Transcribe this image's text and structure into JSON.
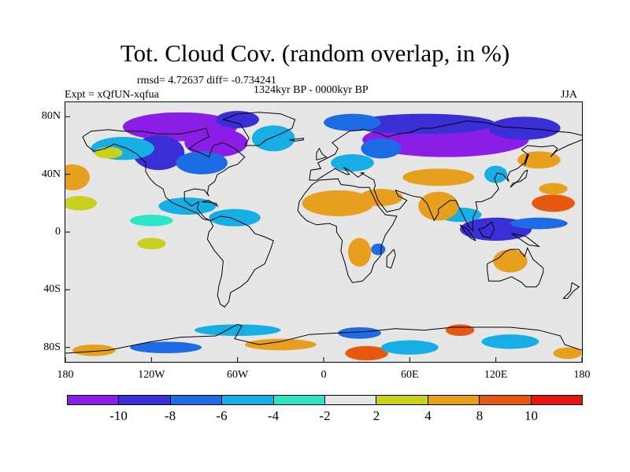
{
  "header": {
    "title": "Tot. Cloud Cov. (random overlap, in %)",
    "stats": "rmsd= 4.72637 diff= -0.734241",
    "period": "1324kyr BP - 0000kyr BP",
    "experiment": "Expt = xQfUN-xqfua",
    "season": "JJA"
  },
  "map": {
    "lat_labels": [
      "80N",
      "40N",
      "0",
      "40S",
      "80S"
    ],
    "lat_values": [
      80,
      40,
      0,
      -40,
      -80
    ],
    "lon_labels": [
      "180",
      "120W",
      "60W",
      "0",
      "60E",
      "120E",
      "180"
    ],
    "lon_values": [
      -180,
      -120,
      -60,
      0,
      60,
      120,
      180
    ],
    "lat_range": [
      -90,
      90
    ],
    "lon_range": [
      -180,
      180
    ],
    "projection": "cylindrical-equidistant",
    "background_color": "#e6e6e6",
    "coastline_color": "#000000"
  },
  "colorbar": {
    "labels": [
      "-10",
      "-8",
      "-6",
      "-4",
      "-2",
      "2",
      "4",
      "8",
      "10"
    ],
    "colors": [
      "#8a1ee6",
      "#3a2ed6",
      "#1e6be6",
      "#17aee6",
      "#2de6c8",
      "#e6e6e6",
      "#c8d21e",
      "#e6a01e",
      "#e65a10",
      "#e61414"
    ]
  },
  "field_patches": [
    {
      "lon": -100,
      "lat": 73,
      "rx": 40,
      "ry": 10,
      "value": -12
    },
    {
      "lon": -75,
      "lat": 62,
      "rx": 22,
      "ry": 10,
      "value": -12
    },
    {
      "lon": -115,
      "lat": 55,
      "rx": 18,
      "ry": 12,
      "value": -10
    },
    {
      "lon": -60,
      "lat": 78,
      "rx": 15,
      "ry": 6,
      "value": -9
    },
    {
      "lon": -140,
      "lat": 58,
      "rx": 22,
      "ry": 8,
      "value": -6
    },
    {
      "lon": -85,
      "lat": 48,
      "rx": 18,
      "ry": 8,
      "value": -7
    },
    {
      "lon": -35,
      "lat": 65,
      "rx": 15,
      "ry": 9,
      "value": -5
    },
    {
      "lon": 85,
      "lat": 64,
      "rx": 58,
      "ry": 12,
      "value": -12
    },
    {
      "lon": 70,
      "lat": 75,
      "rx": 50,
      "ry": 7,
      "value": -10
    },
    {
      "lon": 20,
      "lat": 76,
      "rx": 20,
      "ry": 6,
      "value": -8
    },
    {
      "lon": 140,
      "lat": 72,
      "rx": 25,
      "ry": 8,
      "value": -9
    },
    {
      "lon": 40,
      "lat": 58,
      "rx": 14,
      "ry": 7,
      "value": -7
    },
    {
      "lon": 20,
      "lat": 48,
      "rx": 15,
      "ry": 6,
      "value": -5
    },
    {
      "lon": -95,
      "lat": 18,
      "rx": 20,
      "ry": 6,
      "value": -6
    },
    {
      "lon": -62,
      "lat": 10,
      "rx": 18,
      "ry": 6,
      "value": -5
    },
    {
      "lon": -120,
      "lat": 8,
      "rx": 15,
      "ry": 4,
      "value": -4
    },
    {
      "lon": 120,
      "lat": 2,
      "rx": 25,
      "ry": 8,
      "value": -10
    },
    {
      "lon": 150,
      "lat": 6,
      "rx": 20,
      "ry": 4,
      "value": -8
    },
    {
      "lon": 95,
      "lat": 12,
      "rx": 15,
      "ry": 5,
      "value": -5
    },
    {
      "lon": 120,
      "lat": 40,
      "rx": 8,
      "ry": 6,
      "value": -6
    },
    {
      "lon": 38,
      "lat": -12,
      "rx": 5,
      "ry": 4,
      "value": -7
    },
    {
      "lon": -175,
      "lat": 38,
      "rx": 12,
      "ry": 9,
      "value": 6
    },
    {
      "lon": -170,
      "lat": 20,
      "rx": 12,
      "ry": 5,
      "value": 3
    },
    {
      "lon": -150,
      "lat": 55,
      "rx": 10,
      "ry": 4,
      "value": 3
    },
    {
      "lon": 10,
      "lat": 20,
      "rx": 25,
      "ry": 9,
      "value": 6
    },
    {
      "lon": 40,
      "lat": 24,
      "rx": 15,
      "ry": 6,
      "value": 5
    },
    {
      "lon": 80,
      "lat": 38,
      "rx": 25,
      "ry": 6,
      "value": 5
    },
    {
      "lon": 80,
      "lat": 18,
      "rx": 14,
      "ry": 10,
      "value": 6
    },
    {
      "lon": 160,
      "lat": 20,
      "rx": 15,
      "ry": 6,
      "value": 9
    },
    {
      "lon": 160,
      "lat": 30,
      "rx": 10,
      "ry": 4,
      "value": 4
    },
    {
      "lon": 25,
      "lat": -14,
      "rx": 8,
      "ry": 10,
      "value": 7
    },
    {
      "lon": 130,
      "lat": -20,
      "rx": 12,
      "ry": 8,
      "value": 5
    },
    {
      "lon": -120,
      "lat": -8,
      "rx": 10,
      "ry": 4,
      "value": 3
    },
    {
      "lon": 150,
      "lat": 50,
      "rx": 15,
      "ry": 6,
      "value": 4
    },
    {
      "lon": -60,
      "lat": -68,
      "rx": 30,
      "ry": 4,
      "value": -5
    },
    {
      "lon": 25,
      "lat": -70,
      "rx": 15,
      "ry": 4,
      "value": -8
    },
    {
      "lon": -160,
      "lat": -82,
      "rx": 15,
      "ry": 4,
      "value": 7
    },
    {
      "lon": 30,
      "lat": -84,
      "rx": 15,
      "ry": 5,
      "value": 9
    },
    {
      "lon": 95,
      "lat": -68,
      "rx": 10,
      "ry": 4,
      "value": 9
    },
    {
      "lon": 170,
      "lat": -84,
      "rx": 10,
      "ry": 4,
      "value": 7
    },
    {
      "lon": -110,
      "lat": -80,
      "rx": 25,
      "ry": 4,
      "value": -7
    },
    {
      "lon": 60,
      "lat": -80,
      "rx": 20,
      "ry": 5,
      "value": -6
    },
    {
      "lon": 130,
      "lat": -76,
      "rx": 20,
      "ry": 5,
      "value": -5
    },
    {
      "lon": -30,
      "lat": -78,
      "rx": 25,
      "ry": 4,
      "value": 4
    }
  ],
  "coastlines": [
    [
      [
        -168,
        66
      ],
      [
        -162,
        70
      ],
      [
        -150,
        71
      ],
      [
        -140,
        70
      ],
      [
        -128,
        70
      ],
      [
        -115,
        68
      ],
      [
        -100,
        68
      ],
      [
        -90,
        70
      ],
      [
        -82,
        72
      ],
      [
        -80,
        66
      ],
      [
        -88,
        62
      ],
      [
        -94,
        58
      ],
      [
        -86,
        55
      ],
      [
        -80,
        52
      ],
      [
        -77,
        60
      ],
      [
        -70,
        62
      ],
      [
        -62,
        58
      ],
      [
        -55,
        52
      ],
      [
        -60,
        47
      ],
      [
        -66,
        45
      ],
      [
        -70,
        42
      ],
      [
        -74,
        40
      ],
      [
        -76,
        35
      ],
      [
        -80,
        32
      ],
      [
        -81,
        27
      ],
      [
        -80,
        25
      ],
      [
        -83,
        29
      ],
      [
        -90,
        30
      ],
      [
        -97,
        28
      ],
      [
        -97,
        22
      ],
      [
        -92,
        18
      ],
      [
        -87,
        21
      ],
      [
        -88,
        16
      ],
      [
        -83,
        10
      ],
      [
        -79,
        8
      ],
      [
        -84,
        9
      ],
      [
        -88,
        13
      ],
      [
        -95,
        16
      ],
      [
        -105,
        20
      ],
      [
        -110,
        24
      ],
      [
        -112,
        30
      ],
      [
        -117,
        33
      ],
      [
        -121,
        37
      ],
      [
        -124,
        42
      ],
      [
        -124,
        48
      ],
      [
        -130,
        54
      ],
      [
        -137,
        58
      ],
      [
        -146,
        61
      ],
      [
        -152,
        58
      ],
      [
        -160,
        56
      ],
      [
        -165,
        60
      ],
      [
        -168,
        66
      ]
    ],
    [
      [
        -79,
        8
      ],
      [
        -72,
        11
      ],
      [
        -65,
        10
      ],
      [
        -58,
        7
      ],
      [
        -52,
        4
      ],
      [
        -48,
        -1
      ],
      [
        -42,
        -3
      ],
      [
        -35,
        -6
      ],
      [
        -37,
        -12
      ],
      [
        -39,
        -17
      ],
      [
        -41,
        -22
      ],
      [
        -48,
        -26
      ],
      [
        -53,
        -34
      ],
      [
        -58,
        -38
      ],
      [
        -65,
        -42
      ],
      [
        -66,
        -48
      ],
      [
        -69,
        -52
      ],
      [
        -72,
        -50
      ],
      [
        -74,
        -44
      ],
      [
        -73,
        -37
      ],
      [
        -71,
        -30
      ],
      [
        -70,
        -20
      ],
      [
        -76,
        -13
      ],
      [
        -81,
        -5
      ],
      [
        -80,
        0
      ],
      [
        -77,
        4
      ],
      [
        -79,
        8
      ]
    ],
    [
      [
        -18,
        15
      ],
      [
        -17,
        21
      ],
      [
        -13,
        27
      ],
      [
        -8,
        33
      ],
      [
        -3,
        36
      ],
      [
        10,
        37
      ],
      [
        12,
        33
      ],
      [
        20,
        32
      ],
      [
        25,
        31
      ],
      [
        32,
        31
      ],
      [
        33,
        28
      ],
      [
        38,
        18
      ],
      [
        43,
        12
      ],
      [
        51,
        11
      ],
      [
        48,
        5
      ],
      [
        43,
        -2
      ],
      [
        40,
        -10
      ],
      [
        40,
        -16
      ],
      [
        35,
        -22
      ],
      [
        33,
        -28
      ],
      [
        27,
        -34
      ],
      [
        20,
        -35
      ],
      [
        17,
        -30
      ],
      [
        15,
        -22
      ],
      [
        12,
        -13
      ],
      [
        13,
        -6
      ],
      [
        9,
        0
      ],
      [
        9,
        4
      ],
      [
        4,
        6
      ],
      [
        -5,
        5
      ],
      [
        -12,
        8
      ],
      [
        -16,
        12
      ],
      [
        -18,
        15
      ]
    ],
    [
      [
        -10,
        36
      ],
      [
        -9,
        43
      ],
      [
        -2,
        44
      ],
      [
        -4,
        48
      ],
      [
        2,
        51
      ],
      [
        8,
        54
      ],
      [
        10,
        58
      ],
      [
        6,
        62
      ],
      [
        12,
        66
      ],
      [
        18,
        70
      ],
      [
        28,
        71
      ],
      [
        40,
        68
      ],
      [
        44,
        66
      ],
      [
        52,
        68
      ],
      [
        60,
        69
      ],
      [
        68,
        72
      ],
      [
        75,
        72
      ],
      [
        80,
        73
      ],
      [
        90,
        75
      ],
      [
        100,
        77
      ],
      [
        112,
        76
      ],
      [
        125,
        73
      ],
      [
        140,
        72
      ],
      [
        152,
        71
      ],
      [
        160,
        70
      ],
      [
        172,
        69
      ],
      [
        180,
        67
      ]
    ],
    [
      [
        -10,
        36
      ],
      [
        -5,
        36
      ],
      [
        3,
        41
      ],
      [
        8,
        44
      ],
      [
        12,
        42
      ],
      [
        16,
        40
      ],
      [
        18,
        40
      ],
      [
        14,
        45
      ],
      [
        19,
        42
      ],
      [
        24,
        38
      ],
      [
        28,
        41
      ],
      [
        26,
        41
      ],
      [
        35,
        36
      ],
      [
        36,
        32
      ],
      [
        35,
        30
      ],
      [
        38,
        22
      ],
      [
        44,
        14
      ],
      [
        53,
        16
      ],
      [
        58,
        22
      ],
      [
        52,
        25
      ],
      [
        50,
        29
      ],
      [
        56,
        27
      ],
      [
        62,
        25
      ],
      [
        68,
        24
      ],
      [
        72,
        20
      ],
      [
        77,
        8
      ],
      [
        80,
        13
      ],
      [
        80,
        16
      ],
      [
        88,
        22
      ],
      [
        92,
        22
      ],
      [
        95,
        16
      ],
      [
        98,
        10
      ],
      [
        101,
        4
      ],
      [
        104,
        1
      ],
      [
        104,
        10
      ],
      [
        107,
        16
      ],
      [
        106,
        21
      ],
      [
        110,
        21
      ],
      [
        117,
        24
      ],
      [
        122,
        30
      ],
      [
        121,
        32
      ],
      [
        119,
        37
      ],
      [
        121,
        41
      ],
      [
        125,
        40
      ],
      [
        129,
        35
      ],
      [
        128,
        38
      ],
      [
        130,
        42
      ],
      [
        135,
        44
      ],
      [
        140,
        48
      ],
      [
        142,
        54
      ],
      [
        138,
        57
      ],
      [
        142,
        60
      ],
      [
        152,
        59
      ],
      [
        160,
        60
      ],
      [
        163,
        58
      ],
      [
        158,
        52
      ],
      [
        162,
        56
      ],
      [
        170,
        60
      ],
      [
        180,
        64
      ]
    ],
    [
      [
        -55,
        60
      ],
      [
        -45,
        60
      ],
      [
        -40,
        64
      ],
      [
        -30,
        68
      ],
      [
        -22,
        72
      ],
      [
        -20,
        78
      ],
      [
        -30,
        82
      ],
      [
        -45,
        83
      ],
      [
        -60,
        82
      ],
      [
        -70,
        78
      ],
      [
        -58,
        75
      ],
      [
        -55,
        70
      ],
      [
        -52,
        65
      ],
      [
        -55,
        60
      ]
    ],
    [
      [
        114,
        -22
      ],
      [
        114,
        -26
      ],
      [
        115,
        -34
      ],
      [
        123,
        -34
      ],
      [
        131,
        -31
      ],
      [
        138,
        -35
      ],
      [
        141,
        -38
      ],
      [
        148,
        -38
      ],
      [
        150,
        -36
      ],
      [
        153,
        -28
      ],
      [
        153,
        -25
      ],
      [
        146,
        -19
      ],
      [
        142,
        -11
      ],
      [
        140,
        -17
      ],
      [
        136,
        -12
      ],
      [
        130,
        -12
      ],
      [
        126,
        -14
      ],
      [
        122,
        -18
      ],
      [
        114,
        -22
      ]
    ],
    [
      [
        -180,
        -84
      ],
      [
        -150,
        -82
      ],
      [
        -120,
        -76
      ],
      [
        -100,
        -73
      ],
      [
        -75,
        -72
      ],
      [
        -60,
        -64
      ],
      [
        -57,
        -65
      ],
      [
        -62,
        -74
      ],
      [
        -45,
        -78
      ],
      [
        -30,
        -76
      ],
      [
        -10,
        -71
      ],
      [
        10,
        -70
      ],
      [
        30,
        -69
      ],
      [
        50,
        -67
      ],
      [
        70,
        -68
      ],
      [
        90,
        -66
      ],
      [
        110,
        -66
      ],
      [
        130,
        -66
      ],
      [
        150,
        -68
      ],
      [
        165,
        -72
      ],
      [
        168,
        -78
      ],
      [
        180,
        -82
      ]
    ],
    [
      [
        -5,
        50
      ],
      [
        -5,
        55
      ],
      [
        -3,
        58
      ],
      [
        -1,
        54
      ],
      [
        2,
        52
      ],
      [
        -5,
        50
      ]
    ],
    [
      [
        130,
        31
      ],
      [
        132,
        34
      ],
      [
        137,
        35
      ],
      [
        141,
        38
      ],
      [
        142,
        43
      ],
      [
        140,
        42
      ],
      [
        136,
        36
      ],
      [
        130,
        31
      ]
    ],
    [
      [
        95,
        5
      ],
      [
        100,
        2
      ],
      [
        106,
        -6
      ],
      [
        102,
        -4
      ],
      [
        95,
        5
      ]
    ],
    [
      [
        108,
        2
      ],
      [
        111,
        -3
      ],
      [
        116,
        -4
      ],
      [
        119,
        2
      ],
      [
        117,
        7
      ],
      [
        112,
        3
      ],
      [
        108,
        2
      ]
    ],
    [
      [
        131,
        -1
      ],
      [
        141,
        -3
      ],
      [
        150,
        -10
      ],
      [
        143,
        -9
      ],
      [
        137,
        -5
      ],
      [
        131,
        -1
      ]
    ],
    [
      [
        49,
        -12
      ],
      [
        50,
        -16
      ],
      [
        47,
        -25
      ],
      [
        44,
        -24
      ],
      [
        44,
        -17
      ],
      [
        49,
        -12
      ]
    ],
    [
      [
        173,
        -35
      ],
      [
        178,
        -38
      ],
      [
        174,
        -41
      ],
      [
        170,
        -46
      ],
      [
        167,
        -46
      ],
      [
        172,
        -41
      ],
      [
        173,
        -35
      ]
    ],
    [
      [
        -85,
        21
      ],
      [
        -75,
        20
      ],
      [
        -74,
        18
      ],
      [
        -80,
        22
      ],
      [
        -85,
        21
      ]
    ],
    [
      [
        -24,
        64
      ],
      [
        -14,
        65
      ],
      [
        -14,
        64
      ],
      [
        -20,
        63
      ],
      [
        -24,
        64
      ]
    ],
    [
      [
        140,
        46
      ],
      [
        143,
        54
      ],
      [
        142,
        53
      ],
      [
        140,
        46
      ]
    ]
  ]
}
